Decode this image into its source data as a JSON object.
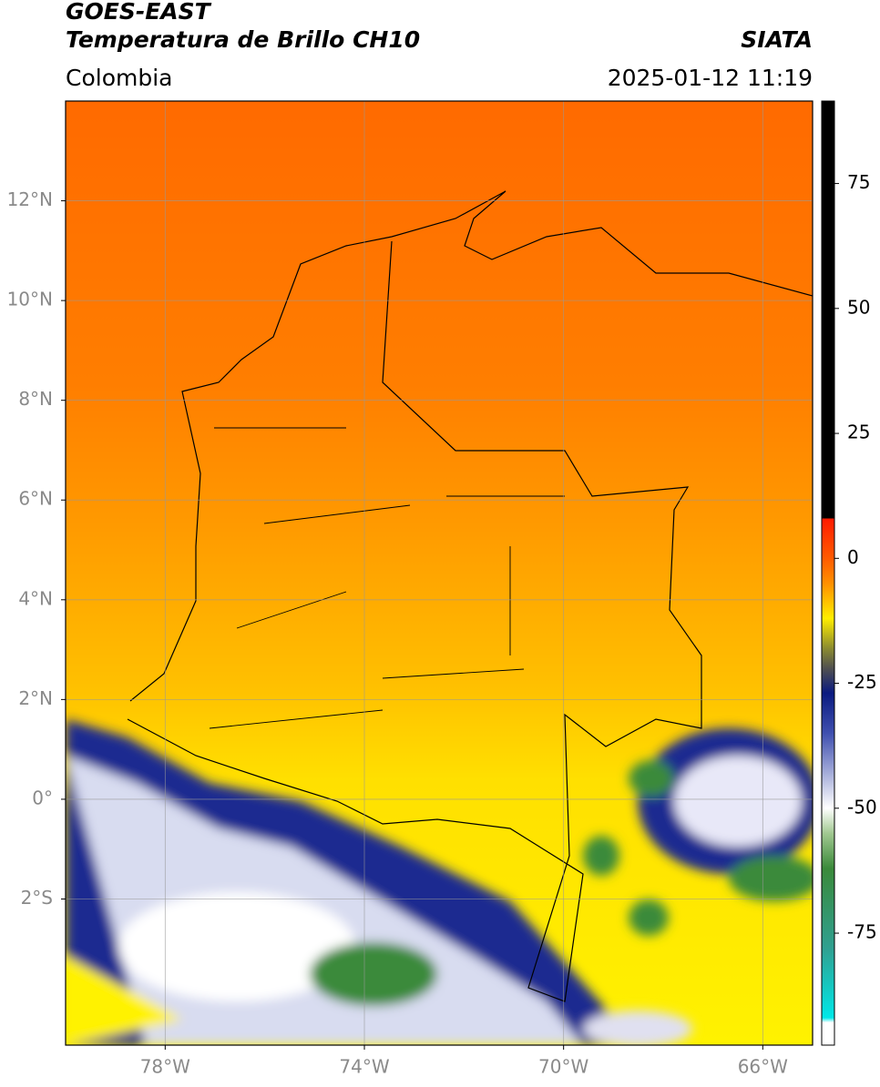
{
  "header": {
    "title": "GOES-EAST",
    "subtitle": "Temperatura de Brillo CH10",
    "source": "SIATA",
    "region": "Colombia",
    "datetime": "2025-01-12 11:19"
  },
  "map": {
    "xlim": [
      -80,
      -65
    ],
    "ylim": [
      -4.93,
      14
    ],
    "xticks": [
      {
        "value": -78,
        "label": "78°W"
      },
      {
        "value": -74,
        "label": "74°W"
      },
      {
        "value": -70,
        "label": "70°W"
      },
      {
        "value": -66,
        "label": "66°W"
      }
    ],
    "yticks": [
      {
        "value": 12,
        "label": "12°N"
      },
      {
        "value": 10,
        "label": "10°N"
      },
      {
        "value": 8,
        "label": "8°N"
      },
      {
        "value": 6,
        "label": "6°N"
      },
      {
        "value": 4,
        "label": "4°N"
      },
      {
        "value": 2,
        "label": "2°N"
      },
      {
        "value": 0,
        "label": "0°"
      },
      {
        "value": -2,
        "label": "2°S"
      }
    ],
    "grid": true
  },
  "colorbar": {
    "lim": [
      -97.4,
      91.5
    ],
    "ticks": [
      75,
      50,
      25,
      0,
      -25,
      -50,
      -75
    ]
  }
}
